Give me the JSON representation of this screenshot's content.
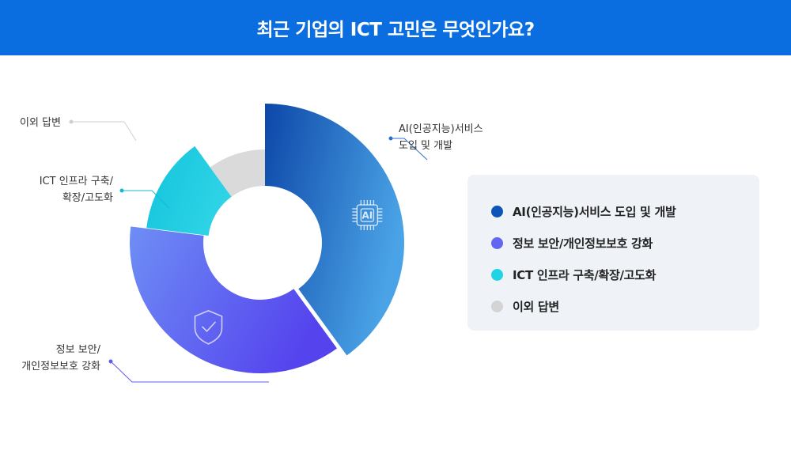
{
  "title": "최근 기업의 ICT 고민은 무엇인가요?",
  "chart_data": {
    "type": "pie",
    "categories": [
      "AI(인공지능)서비스 도입 및 개발",
      "정보 보안/개인정보보호 강화",
      "ICT 인프라 구축/확장/고도화",
      "이외 답변"
    ],
    "values": [
      40,
      37,
      13,
      10
    ],
    "callouts": [
      [
        "AI(인공지능)서비스",
        "도입 및 개발"
      ],
      [
        "정보 보안/",
        "개인정보보호 강화"
      ],
      [
        "ICT 인프라 구축/",
        "확장/고도화"
      ],
      [
        "이외 답변"
      ]
    ],
    "center_icons": [
      "ai-chip-icon",
      "shield-check-icon",
      "",
      ""
    ],
    "chip_label": "AI",
    "colors": [
      [
        "#0d47a8",
        "#4aa3e6"
      ],
      [
        "#6e8ef5",
        "#5544ee"
      ],
      [
        "#12c4dc",
        "#2fd3e6"
      ],
      [
        "#dadada",
        "#dadada"
      ]
    ],
    "legend_colors": [
      "#0d55b8",
      "#6366f1",
      "#22d3e6",
      "#d4d4d4"
    ],
    "legend_position": "right"
  }
}
